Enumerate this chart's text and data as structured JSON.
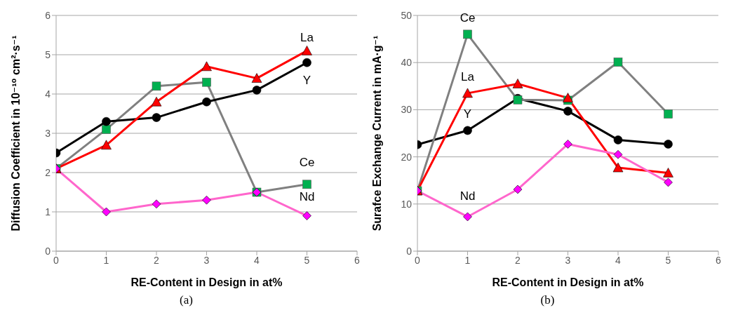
{
  "chart_data": [
    {
      "type": "line",
      "title": "(a)",
      "xlabel": "RE-Content in Design in at%",
      "ylabel": "Diffusion Coefficient in 10⁻¹⁰ cm²·s⁻¹",
      "x": [
        0,
        1,
        2,
        3,
        4,
        5
      ],
      "xlim": [
        0,
        6
      ],
      "xticks": [
        0,
        1,
        2,
        3,
        4,
        5,
        6
      ],
      "ylim": [
        0,
        6
      ],
      "yticks": [
        0,
        1,
        2,
        3,
        4,
        5,
        6
      ],
      "grid": "y",
      "legend": false,
      "series": [
        {
          "name": "Ce",
          "color": "#808080",
          "colors": [
            "#00b050",
            "#00b050",
            "#00b050",
            "#00b050",
            "#00b050",
            "#00b050"
          ],
          "marker": "square",
          "values": [
            2.1,
            3.1,
            4.2,
            4.3,
            1.5,
            1.7
          ]
        },
        {
          "name": "Y",
          "color": "#000000",
          "marker": "circle",
          "values": [
            2.5,
            3.3,
            3.4,
            3.8,
            4.1,
            4.8
          ]
        },
        {
          "name": "La",
          "color": "#ff0000",
          "marker": "triangle",
          "values": [
            2.1,
            2.7,
            3.8,
            4.7,
            4.4,
            5.1
          ]
        },
        {
          "name": "Nd",
          "color": "#ff66cc",
          "colors": [
            "#ff00ff",
            "#ff00ff",
            "#ff00ff",
            "#ff00ff",
            "#ff00ff",
            "#ff00ff"
          ],
          "marker": "diamond",
          "values": [
            2.1,
            1.0,
            1.2,
            1.3,
            1.5,
            0.9
          ]
        }
      ]
    },
    {
      "type": "line",
      "title": "(b)",
      "xlabel": "RE-Content in Design in at%",
      "ylabel": "Surafce Exchange Current in mA·g⁻¹",
      "x": [
        0,
        1,
        2,
        3,
        4,
        5
      ],
      "xlim": [
        0,
        6
      ],
      "xticks": [
        0,
        1,
        2,
        3,
        4,
        5,
        6
      ],
      "ylim": [
        0,
        50
      ],
      "yticks": [
        0,
        10,
        20,
        30,
        40,
        50
      ],
      "grid": "y",
      "legend": false,
      "series": [
        {
          "name": "Y",
          "color": "#000000",
          "marker": "circle",
          "values": [
            22.6,
            25.6,
            32.4,
            29.7,
            23.6,
            22.7
          ]
        },
        {
          "name": "Ce",
          "color": "#808080",
          "colors": [
            "#00b050",
            "#00b050",
            "#00b050",
            "#00b050",
            "#00b050",
            "#00b050"
          ],
          "marker": "square",
          "values": [
            12.8,
            46,
            32.1,
            32,
            40.1,
            29.1
          ]
        },
        {
          "name": "La",
          "color": "#ff0000",
          "marker": "triangle",
          "values": [
            12.8,
            33.5,
            35.5,
            32.5,
            17.7,
            16.6
          ]
        },
        {
          "name": "Nd",
          "color": "#ff66cc",
          "colors": [
            "#ff00ff",
            "#ff00ff",
            "#ff00ff",
            "#ff00ff",
            "#ff00ff",
            "#ff00ff"
          ],
          "marker": "diamond",
          "values": [
            12.8,
            7.3,
            13.1,
            22.7,
            20.5,
            14.6
          ]
        }
      ]
    }
  ]
}
